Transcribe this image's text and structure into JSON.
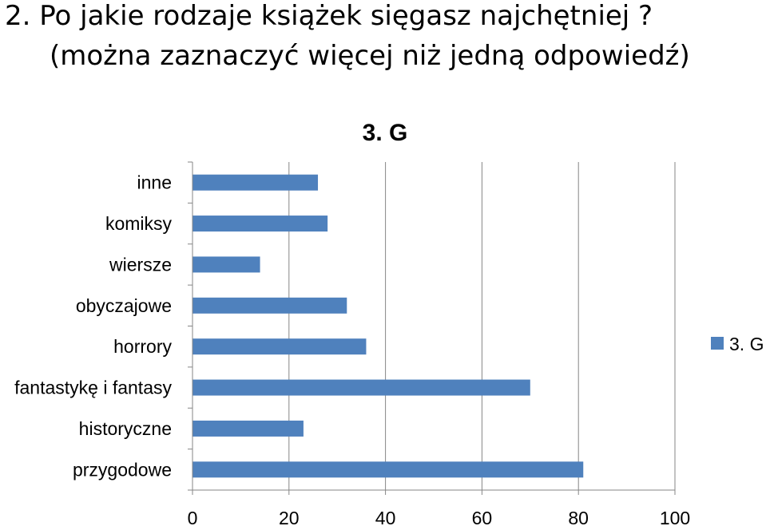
{
  "question": {
    "line1": "2.  Po jakie rodzaje książek sięgasz najchętniej ?",
    "line2": "(można zaznaczyć więcej niż jedną odpowiedź)"
  },
  "chart_data": {
    "type": "bar",
    "orientation": "horizontal",
    "title": "3. G",
    "categories": [
      "inne",
      "komiksy",
      "wiersze",
      "obyczajowe",
      "horrory",
      "fantastykę i fantasy",
      "historyczne",
      "przygodowe"
    ],
    "series": [
      {
        "name": "3. G",
        "values": [
          26,
          28,
          14,
          32,
          36,
          70,
          23,
          81
        ]
      }
    ],
    "xlim": [
      0,
      100
    ],
    "xticks": [
      0,
      20,
      40,
      60,
      80,
      100
    ],
    "grid": true,
    "legend": "right",
    "colors": {
      "bar": "#4f81bd",
      "grid": "#868686",
      "axis": "#868686"
    }
  }
}
